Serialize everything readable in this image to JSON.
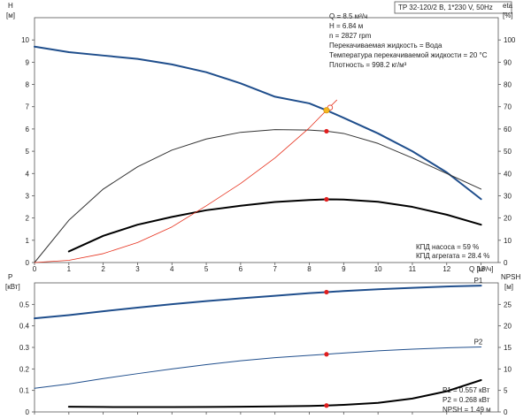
{
  "header": {
    "title": "TP 32-120/2 B, 1*230 V, 50Hz"
  },
  "info": [
    "Q = 8.5 м³/ч",
    "H = 6.84 м",
    "n = 2827 rpm",
    "Перекачиваемая жидкость = Вода",
    "Температура перекачиваемой жидкости = 20 °C",
    "Плотность = 998.2 кг/м³"
  ],
  "efficiency_note": [
    "КПД насоса = 59 %",
    "КПД агрегата = 28.4 %"
  ],
  "power_note": [
    "P1 = 0.557 кВт",
    "P2 = 0.268 кВт",
    "NPSH = 1.49 м"
  ],
  "axes": {
    "h_letter": "H",
    "h_unit": "[м]",
    "eta_letter": "eta",
    "eta_unit": "[%]",
    "p_letter": "P",
    "p_unit": "[кВт]",
    "npsh_letter": "NPSH",
    "npsh_unit": "[м]",
    "q_label": "Q [м³/ч]"
  },
  "chart_data": [
    {
      "type": "line",
      "title": "TP 32-120/2 B, 1*230 V, 50Hz",
      "xlabel": "Q [м³/ч]",
      "ylabel": "H [м]",
      "y2label": "eta [%]",
      "xlim": [
        0,
        13.5
      ],
      "ylim": [
        0,
        11
      ],
      "y2lim": [
        0,
        110
      ],
      "xticks": [
        0,
        1,
        2,
        3,
        4,
        5,
        6,
        7,
        8,
        9,
        10,
        11,
        12,
        13
      ],
      "yticks": [
        0,
        1,
        2,
        3,
        4,
        5,
        6,
        7,
        8,
        9,
        10
      ],
      "y2ticks": [
        0,
        10,
        20,
        30,
        40,
        50,
        60,
        70,
        80,
        90,
        100
      ],
      "grid": false,
      "series": [
        {
          "key": "H",
          "axis": "left",
          "color": "#1f4e8c",
          "width": 2,
          "x": [
            0,
            1,
            2,
            3,
            4,
            5,
            6,
            7,
            8,
            8.5,
            9,
            10,
            11,
            12,
            13
          ],
          "y": [
            9.7,
            9.45,
            9.3,
            9.15,
            8.9,
            8.55,
            8.05,
            7.45,
            7.15,
            6.84,
            6.5,
            5.8,
            5.0,
            4.05,
            2.85
          ]
        },
        {
          "key": "eta_pump",
          "axis": "right",
          "color": "#333333",
          "width": 1,
          "x": [
            0,
            1,
            2,
            3,
            4,
            5,
            6,
            7,
            8,
            8.5,
            9,
            10,
            11,
            12,
            13
          ],
          "y": [
            0,
            19,
            33,
            43,
            50.5,
            55.5,
            58.5,
            59.7,
            59.5,
            59,
            58,
            53.5,
            47,
            40,
            33
          ]
        },
        {
          "key": "eta_unit",
          "axis": "right",
          "color": "#000000",
          "width": 2,
          "x": [
            1,
            2,
            3,
            4,
            5,
            6,
            7,
            8,
            8.5,
            9,
            10,
            11,
            12,
            13
          ],
          "y": [
            5,
            12,
            17,
            20.5,
            23.5,
            25.5,
            27.2,
            28.1,
            28.4,
            28.3,
            27.3,
            25,
            21.5,
            17
          ]
        },
        {
          "key": "system",
          "axis": "left",
          "color": "#e6301c",
          "width": 0.8,
          "x": [
            0,
            1,
            2,
            3,
            4,
            5,
            6,
            7,
            8,
            8.5,
            8.8
          ],
          "y": [
            0,
            0.1,
            0.4,
            0.9,
            1.6,
            2.55,
            3.55,
            4.7,
            6.05,
            6.84,
            7.3
          ]
        }
      ],
      "duty_point": {
        "x": 8.5,
        "y": 6.84
      },
      "markers": [
        {
          "axis": "right",
          "x": 8.5,
          "y": 59
        },
        {
          "axis": "right",
          "x": 8.5,
          "y": 28.4
        }
      ]
    },
    {
      "type": "line",
      "xlabel": "Q [м³/ч]",
      "ylabel": "P [кВт]",
      "y2label": "NPSH [м]",
      "xlim": [
        0,
        13.5
      ],
      "ylim": [
        0,
        0.6
      ],
      "y2lim": [
        0,
        30
      ],
      "yticks": [
        0,
        0.1,
        0.2,
        0.3,
        0.4,
        0.5
      ],
      "y2ticks": [
        0,
        5,
        10,
        15,
        20,
        25
      ],
      "grid": false,
      "series": [
        {
          "name": "P1",
          "axis": "left",
          "color": "#1f4e8c",
          "width": 2,
          "x": [
            0,
            1,
            2,
            3,
            4,
            5,
            6,
            7,
            8,
            8.5,
            9,
            10,
            11,
            12,
            13
          ],
          "y": [
            0.435,
            0.45,
            0.468,
            0.485,
            0.501,
            0.515,
            0.528,
            0.54,
            0.552,
            0.557,
            0.562,
            0.57,
            0.577,
            0.583,
            0.587
          ]
        },
        {
          "name": "P2",
          "axis": "left",
          "color": "#1f4e8c",
          "width": 1,
          "x": [
            0,
            1,
            2,
            3,
            4,
            5,
            6,
            7,
            8,
            8.5,
            9,
            10,
            11,
            12,
            13
          ],
          "y": [
            0.11,
            0.13,
            0.155,
            0.178,
            0.2,
            0.22,
            0.238,
            0.252,
            0.263,
            0.268,
            0.274,
            0.284,
            0.292,
            0.298,
            0.302
          ]
        },
        {
          "key": "NPSH",
          "axis": "right",
          "color": "#000000",
          "width": 2,
          "x": [
            1,
            2,
            3,
            4,
            5,
            6,
            7,
            8,
            8.5,
            9,
            10,
            11,
            12,
            13
          ],
          "y": [
            1.2,
            1.15,
            1.12,
            1.12,
            1.15,
            1.2,
            1.28,
            1.4,
            1.49,
            1.65,
            2.1,
            3.1,
            4.8,
            7.4
          ]
        }
      ],
      "markers": [
        {
          "axis": "left",
          "x": 8.5,
          "y": 0.557
        },
        {
          "axis": "left",
          "x": 8.5,
          "y": 0.268
        },
        {
          "axis": "right",
          "x": 8.5,
          "y": 1.49
        }
      ]
    }
  ]
}
